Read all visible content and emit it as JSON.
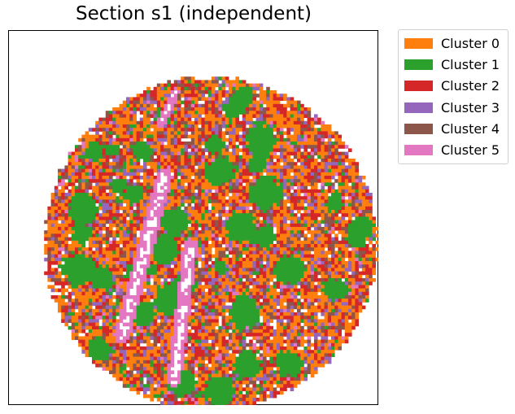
{
  "chart_data": {
    "type": "scatter",
    "title": "Section s1 (independent)",
    "xlabel": "",
    "ylabel": "",
    "grid": false,
    "legend_position": "outside-top-right",
    "series": [
      {
        "name": "Cluster 0",
        "color": "#ff7f0e"
      },
      {
        "name": "Cluster 1",
        "color": "#2ca02c"
      },
      {
        "name": "Cluster 2",
        "color": "#d62728"
      },
      {
        "name": "Cluster 3",
        "color": "#9467bd"
      },
      {
        "name": "Cluster 4",
        "color": "#8c564b"
      },
      {
        "name": "Cluster 5",
        "color": "#e377c2"
      }
    ],
    "description_of_marks": "Square spots arranged on a grid inside a circular tissue section, each colored by its cluster; no axis ticks shown."
  }
}
